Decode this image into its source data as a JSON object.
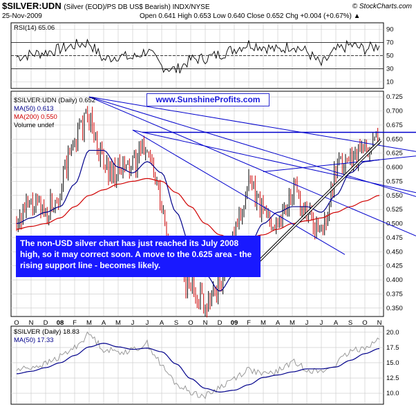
{
  "header": {
    "title": "$SILVER:UDN",
    "subtitle": "(Silver (EOD)/PS DB US$ Bearish)  INDX/NYSE",
    "brand": "© StockCharts.com",
    "date": "25-Nov-2009",
    "ohlc": "Open 0.641  High 0.653  Low 0.640  Close 0.652  Chg +0.004 (+0.67%) ▲"
  },
  "rsi_panel": {
    "label": "RSI(14) 65.06",
    "ticks": [
      "90",
      "70",
      "50",
      "30",
      "10"
    ]
  },
  "main_panel": {
    "legend": {
      "symbol": "$SILVER:UDN (Daily) 0.652",
      "ma50": "MA(50) 0.613",
      "ma200": "MA(200) 0.550",
      "volume": "Volume undef"
    },
    "url_text": "www.SunshineProfits.com",
    "annotation": "The non-USD silver chart has just reached its July 2008 high, so it may correct soon. A move to the 0.625 area - the rising support line - becomes likely.",
    "yticks": [
      "0.725",
      "0.700",
      "0.675",
      "0.650",
      "0.625",
      "0.600",
      "0.575",
      "0.550",
      "0.525",
      "0.500",
      "0.475",
      "0.450",
      "0.425",
      "0.400",
      "0.375",
      "0.350"
    ]
  },
  "x_axis": {
    "labels": [
      "O",
      "N",
      "D",
      "08",
      "F",
      "M",
      "A",
      "M",
      "J",
      "J",
      "A",
      "S",
      "O",
      "N",
      "D",
      "09",
      "F",
      "M",
      "A",
      "M",
      "J",
      "J",
      "A",
      "S",
      "O",
      "N"
    ]
  },
  "silver_panel": {
    "legend": {
      "symbol": "$SILVER (Daily) 18.83",
      "ma50": "MA(50) 17.33"
    },
    "ticks": [
      "20.0",
      "17.5",
      "15.0",
      "12.5",
      "10.0"
    ]
  },
  "chart_data": [
    {
      "type": "line",
      "name": "RSI(14)",
      "ylim": [
        0,
        100
      ],
      "guide_lines": [
        70,
        50,
        30
      ],
      "x": [
        "O",
        "N",
        "D",
        "08",
        "F",
        "M",
        "A",
        "M",
        "J",
        "J",
        "A",
        "S",
        "O",
        "N",
        "D",
        "09",
        "F",
        "M",
        "A",
        "M",
        "J",
        "J",
        "A",
        "S",
        "O",
        "N"
      ],
      "values": [
        48,
        52,
        55,
        60,
        66,
        70,
        44,
        50,
        46,
        58,
        34,
        28,
        44,
        46,
        52,
        60,
        68,
        64,
        58,
        66,
        56,
        36,
        58,
        66,
        60,
        65
      ]
    },
    {
      "type": "bar",
      "title": "$SILVER:UDN (Daily) 0.652",
      "ylim": [
        0.335,
        0.735
      ],
      "x": [
        "O",
        "N",
        "D",
        "08",
        "F",
        "M",
        "A",
        "M",
        "J",
        "J",
        "A",
        "S",
        "O",
        "N",
        "D",
        "09",
        "F",
        "M",
        "A",
        "M",
        "J",
        "J",
        "A",
        "S",
        "O",
        "N"
      ],
      "series": [
        {
          "name": "$SILVER:UDN",
          "values": [
            0.51,
            0.53,
            0.52,
            0.56,
            0.65,
            0.69,
            0.6,
            0.59,
            0.6,
            0.64,
            0.52,
            0.42,
            0.39,
            0.36,
            0.39,
            0.48,
            0.57,
            0.52,
            0.5,
            0.56,
            0.52,
            0.48,
            0.59,
            0.62,
            0.63,
            0.652
          ]
        },
        {
          "name": "MA(50)",
          "values": [
            0.5,
            0.51,
            0.52,
            0.53,
            0.57,
            0.63,
            0.63,
            0.6,
            0.59,
            0.61,
            0.59,
            0.52,
            0.46,
            0.41,
            0.38,
            0.41,
            0.46,
            0.5,
            0.52,
            0.53,
            0.53,
            0.52,
            0.55,
            0.59,
            0.61,
            0.613
          ]
        },
        {
          "name": "MA(200)",
          "values": [
            0.49,
            0.495,
            0.5,
            0.51,
            0.53,
            0.55,
            0.56,
            0.57,
            0.575,
            0.58,
            0.575,
            0.555,
            0.53,
            0.5,
            0.48,
            0.47,
            0.475,
            0.48,
            0.49,
            0.5,
            0.505,
            0.51,
            0.52,
            0.53,
            0.54,
            0.55
          ]
        }
      ],
      "reference_lines": [
        0.662
      ],
      "trend_lines": [
        {
          "from": [
            "M",
            0.725
          ],
          "to": [
            "N",
            0.628
          ]
        },
        {
          "from": [
            "M",
            0.725
          ],
          "to": [
            "N",
            0.548
          ]
        },
        {
          "from": [
            "M",
            0.725
          ],
          "to": [
            "N",
            0.478
          ]
        },
        {
          "from": [
            "J",
            0.666
          ],
          "to": [
            "N",
            0.555
          ]
        },
        {
          "from": [
            "J",
            0.666
          ],
          "to": [
            "S",
            0.445
          ]
        },
        {
          "from": [
            "M",
            0.592
          ],
          "to": [
            "N",
            0.62
          ]
        },
        {
          "from": [
            "J",
            0.468
          ],
          "to": [
            "N",
            0.648
          ]
        }
      ]
    },
    {
      "type": "line",
      "title": "$SILVER (Daily) 18.83",
      "ylim": [
        8.2,
        21.0
      ],
      "x": [
        "O",
        "N",
        "D",
        "08",
        "F",
        "M",
        "A",
        "M",
        "J",
        "J",
        "A",
        "S",
        "O",
        "N",
        "D",
        "09",
        "F",
        "M",
        "A",
        "M",
        "J",
        "J",
        "A",
        "S",
        "O",
        "N"
      ],
      "series": [
        {
          "name": "$SILVER",
          "values": [
            13.8,
            14.3,
            14.8,
            16.0,
            17.5,
            19.8,
            17.2,
            16.8,
            17.0,
            18.2,
            14.5,
            11.5,
            10.2,
            9.5,
            11.0,
            12.5,
            14.0,
            13.0,
            13.6,
            15.2,
            14.0,
            13.4,
            14.8,
            16.8,
            17.6,
            18.83
          ]
        },
        {
          "name": "MA(50)",
          "values": [
            13.2,
            13.6,
            14.2,
            15.0,
            16.2,
            17.6,
            18.2,
            17.6,
            17.2,
            17.4,
            16.8,
            14.8,
            12.4,
            10.8,
            10.2,
            10.5,
            11.4,
            12.6,
            13.0,
            13.5,
            14.0,
            14.0,
            14.3,
            15.4,
            16.5,
            17.33
          ]
        }
      ]
    }
  ],
  "colors": {
    "price_up": "#000000",
    "price_down": "#cc0000",
    "ma50": "#00008b",
    "ma200": "#d00000",
    "trendline": "#0000cc",
    "horizontal_line": "#0000cc",
    "support": "#ffffff",
    "grid": "#c8c8c8"
  }
}
